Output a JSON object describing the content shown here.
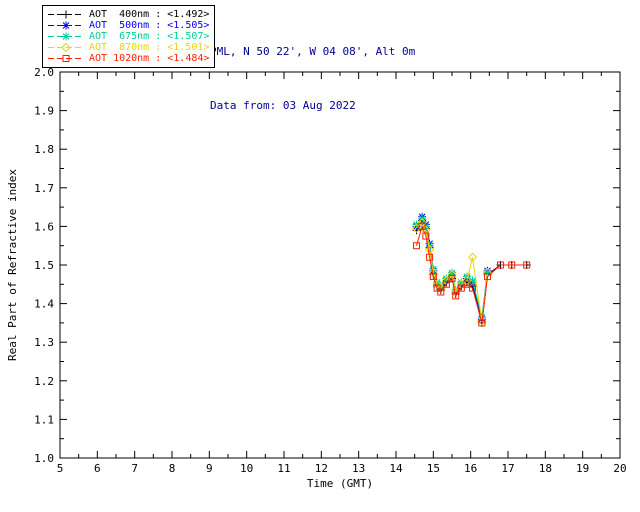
{
  "header": {
    "location_line": "PML, N 50 22', W 04 08', Alt 0m",
    "date_line": "Data from: 03 Aug 2022",
    "color": "#000090"
  },
  "legend": {
    "position": "top-left",
    "items": [
      {
        "label": "AOT  400nm : <1.492>",
        "wavelength": "400nm",
        "mean": 1.492,
        "color": "#000000",
        "marker": "plus",
        "dash": "6,3"
      },
      {
        "label": "AOT  500nm : <1.505>",
        "wavelength": "500nm",
        "mean": 1.505,
        "color": "#0000ff",
        "marker": "asterisk",
        "dash": "6,3"
      },
      {
        "label": "AOT  675nm : <1.507>",
        "wavelength": "675nm",
        "mean": 1.507,
        "color": "#00cc99",
        "marker": "asterisk",
        "dash": "6,3"
      },
      {
        "label": "AOT  870nm : <1.501>",
        "wavelength": "870nm",
        "mean": 1.501,
        "color": "#e8d800",
        "marker": "diamond",
        "dash": "6,3"
      },
      {
        "label": "AOT 1020nm : <1.484>",
        "wavelength": "1020nm",
        "mean": 1.484,
        "color": "#ff2000",
        "marker": "square",
        "dash": "6,3"
      }
    ]
  },
  "axes": {
    "xlabel": "Time (GMT)",
    "ylabel": "Real Part of Refractive index",
    "x_ticks": [
      5,
      6,
      7,
      8,
      9,
      10,
      11,
      12,
      13,
      14,
      15,
      16,
      17,
      18,
      19,
      20
    ],
    "y_ticks": [
      "1.0",
      "1.1",
      "1.2",
      "1.3",
      "1.4",
      "1.5",
      "1.6",
      "1.7",
      "1.8",
      "1.9",
      "2.0"
    ],
    "x_minor_step": 0.5,
    "y_minor_step": 0.05,
    "xlim": [
      5,
      20
    ],
    "ylim": [
      1.0,
      2.0
    ],
    "axis_color": "#000000"
  },
  "chart_data": {
    "type": "line",
    "title": "",
    "xlabel": "Time (GMT)",
    "ylabel": "Real Part of Refractive index",
    "xlim": [
      5,
      20
    ],
    "ylim": [
      1.0,
      2.0
    ],
    "grid": false,
    "legend_position": "top-left",
    "series": [
      {
        "name": "AOT 400nm",
        "mean": 1.492,
        "color": "#000000",
        "marker": "plus",
        "x": [
          14.55,
          14.7,
          14.8,
          14.9,
          15.0,
          15.1,
          15.2,
          15.35,
          15.5,
          15.6,
          15.75,
          15.9,
          16.05,
          16.3,
          16.45,
          16.8,
          17.1,
          17.5
        ],
        "y": [
          1.59,
          1.615,
          1.595,
          1.545,
          1.475,
          1.445,
          1.435,
          1.455,
          1.465,
          1.425,
          1.445,
          1.455,
          1.445,
          1.35,
          1.475,
          1.5,
          1.5,
          1.5
        ]
      },
      {
        "name": "AOT 500nm",
        "mean": 1.505,
        "color": "#0000ff",
        "marker": "asterisk",
        "x": [
          14.55,
          14.7,
          14.8,
          14.9,
          15.0,
          15.1,
          15.2,
          15.35,
          15.5,
          15.6,
          15.75,
          15.9,
          16.05,
          16.3,
          16.45
        ],
        "y": [
          1.6,
          1.625,
          1.605,
          1.555,
          1.485,
          1.45,
          1.44,
          1.46,
          1.475,
          1.43,
          1.45,
          1.465,
          1.455,
          1.36,
          1.485
        ]
      },
      {
        "name": "AOT 675nm",
        "mean": 1.507,
        "color": "#00cc99",
        "marker": "asterisk",
        "x": [
          14.55,
          14.7,
          14.8,
          14.9,
          15.0,
          15.1,
          15.2,
          15.35,
          15.5,
          15.6,
          15.75,
          15.9,
          16.05,
          16.3,
          16.45
        ],
        "y": [
          1.605,
          1.62,
          1.6,
          1.55,
          1.49,
          1.455,
          1.445,
          1.465,
          1.48,
          1.435,
          1.455,
          1.47,
          1.46,
          1.365,
          1.48
        ]
      },
      {
        "name": "AOT 870nm",
        "mean": 1.501,
        "color": "#e8d800",
        "marker": "diamond",
        "x": [
          14.55,
          14.7,
          14.8,
          14.9,
          15.0,
          15.1,
          15.2,
          15.35,
          15.5,
          15.6,
          15.75,
          15.9,
          16.05,
          16.3,
          16.45
        ],
        "y": [
          1.595,
          1.61,
          1.59,
          1.54,
          1.48,
          1.45,
          1.44,
          1.46,
          1.475,
          1.43,
          1.45,
          1.46,
          1.52,
          1.355,
          1.48
        ]
      },
      {
        "name": "AOT 1020nm",
        "mean": 1.484,
        "color": "#ff2000",
        "marker": "square",
        "x": [
          14.55,
          14.7,
          14.8,
          14.9,
          15.0,
          15.1,
          15.2,
          15.35,
          15.5,
          15.6,
          15.75,
          15.9,
          16.05,
          16.3,
          16.45,
          16.8,
          17.1,
          17.5
        ],
        "y": [
          1.55,
          1.6,
          1.575,
          1.52,
          1.47,
          1.44,
          1.43,
          1.45,
          1.465,
          1.42,
          1.44,
          1.45,
          1.44,
          1.35,
          1.47,
          1.5,
          1.5,
          1.5
        ]
      }
    ]
  }
}
